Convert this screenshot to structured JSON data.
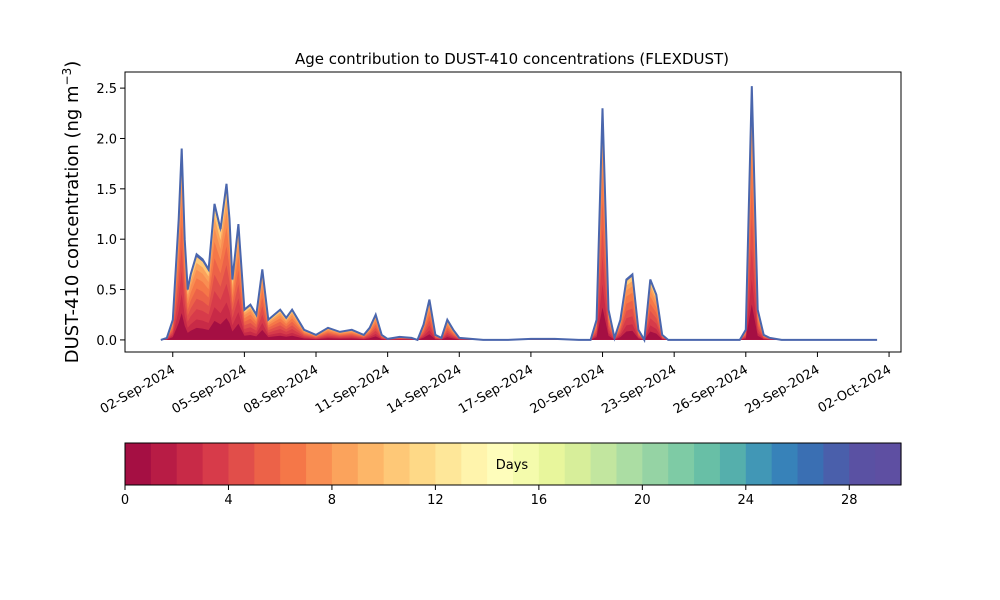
{
  "chart_data": [
    {
      "type": "area",
      "title": "Age contribution to DUST-410 concentrations (FLEXDUST)",
      "ylabel": "DUST-410 concentration (ng m",
      "ylabel_sup": "−3",
      "ylabel_close": ")",
      "xlabel": "",
      "stacked": true,
      "x_tick_labels": [
        "02-Sep-2024",
        "05-Sep-2024",
        "08-Sep-2024",
        "11-Sep-2024",
        "14-Sep-2024",
        "17-Sep-2024",
        "20-Sep-2024",
        "23-Sep-2024",
        "26-Sep-2024",
        "29-Sep-2024",
        "02-Oct-2024"
      ],
      "x_range": [
        "2024-08-31T00:00",
        "2024-10-02T12:00"
      ],
      "y_ticks": [
        "0.0",
        "0.5",
        "1.0",
        "1.5",
        "2.0",
        "2.5"
      ],
      "ylim": [
        -0.12,
        2.66
      ],
      "grid": false,
      "outline_color": "#4a66ad",
      "total_series": {
        "name": "",
        "x": [
          "2024-09-01T12:00",
          "2024-09-01T18:00",
          "2024-09-02T00:00",
          "2024-09-02T06:00",
          "2024-09-02T09:00",
          "2024-09-02T12:00",
          "2024-09-02T15:00",
          "2024-09-02T18:00",
          "2024-09-03T00:00",
          "2024-09-03T06:00",
          "2024-09-03T12:00",
          "2024-09-03T18:00",
          "2024-09-04T00:00",
          "2024-09-04T06:00",
          "2024-09-04T09:00",
          "2024-09-04T12:00",
          "2024-09-04T18:00",
          "2024-09-05T00:00",
          "2024-09-05T06:00",
          "2024-09-05T12:00",
          "2024-09-05T18:00",
          "2024-09-06T00:00",
          "2024-09-06T06:00",
          "2024-09-06T12:00",
          "2024-09-06T18:00",
          "2024-09-07T00:00",
          "2024-09-07T12:00",
          "2024-09-08T00:00",
          "2024-09-08T12:00",
          "2024-09-09T00:00",
          "2024-09-09T12:00",
          "2024-09-10T00:00",
          "2024-09-10T06:00",
          "2024-09-10T12:00",
          "2024-09-10T18:00",
          "2024-09-11T00:00",
          "2024-09-11T12:00",
          "2024-09-12T00:00",
          "2024-09-12T06:00",
          "2024-09-12T12:00",
          "2024-09-12T18:00",
          "2024-09-13T00:00",
          "2024-09-13T06:00",
          "2024-09-13T12:00",
          "2024-09-13T18:00",
          "2024-09-14T00:00",
          "2024-09-15T00:00",
          "2024-09-16T00:00",
          "2024-09-17T00:00",
          "2024-09-18T00:00",
          "2024-09-19T00:00",
          "2024-09-19T12:00",
          "2024-09-19T18:00",
          "2024-09-20T00:00",
          "2024-09-20T06:00",
          "2024-09-20T12:00",
          "2024-09-20T18:00",
          "2024-09-21T00:00",
          "2024-09-21T06:00",
          "2024-09-21T12:00",
          "2024-09-21T18:00",
          "2024-09-22T00:00",
          "2024-09-22T06:00",
          "2024-09-22T12:00",
          "2024-09-22T18:00",
          "2024-09-23T00:00",
          "2024-09-24T00:00",
          "2024-09-25T00:00",
          "2024-09-25T18:00",
          "2024-09-26T00:00",
          "2024-09-26T06:00",
          "2024-09-26T12:00",
          "2024-09-26T18:00",
          "2024-09-27T00:00",
          "2024-09-27T12:00",
          "2024-09-28T00:00",
          "2024-09-29T00:00",
          "2024-09-30T00:00",
          "2024-10-01T00:00",
          "2024-10-01T12:00"
        ],
        "values": [
          0.0,
          0.02,
          0.2,
          1.2,
          1.9,
          1.0,
          0.5,
          0.65,
          0.85,
          0.8,
          0.7,
          1.35,
          1.1,
          1.55,
          1.2,
          0.6,
          1.15,
          0.3,
          0.35,
          0.25,
          0.7,
          0.2,
          0.25,
          0.3,
          0.22,
          0.3,
          0.1,
          0.05,
          0.12,
          0.08,
          0.1,
          0.05,
          0.12,
          0.25,
          0.05,
          0.01,
          0.03,
          0.02,
          0.0,
          0.15,
          0.4,
          0.05,
          0.02,
          0.2,
          0.1,
          0.02,
          0.0,
          0.0,
          0.01,
          0.01,
          0.0,
          0.0,
          0.2,
          2.3,
          0.3,
          0.02,
          0.2,
          0.6,
          0.65,
          0.1,
          0.0,
          0.6,
          0.45,
          0.05,
          0.0,
          0.0,
          0.0,
          0.0,
          0.0,
          0.1,
          2.52,
          0.3,
          0.05,
          0.02,
          0.0,
          0.0,
          0.0,
          0.0,
          0.0,
          0.0
        ]
      },
      "colorbar": {
        "label": "Days",
        "range": [
          0,
          30
        ],
        "ticks": [
          "0",
          "4",
          "8",
          "12",
          "16",
          "20",
          "24",
          "28"
        ],
        "colors": [
          "#a50f43",
          "#b81c45",
          "#c82a47",
          "#d73b4a",
          "#e14e4a",
          "#ec6248",
          "#f57748",
          "#f98e52",
          "#fba35c",
          "#fdb668",
          "#fec877",
          "#fed987",
          "#fee799",
          "#fff4ac",
          "#fefdbb",
          "#f4fbac",
          "#e8f69c",
          "#d7ee9a",
          "#c2e69f",
          "#abdda3",
          "#95d3a4",
          "#7ecba5",
          "#68bfa6",
          "#55afac",
          "#4197b6",
          "#3782b9",
          "#3a6fb3",
          "#4a5fab",
          "#5a51a3",
          "#5e4fa2"
        ]
      }
    }
  ]
}
